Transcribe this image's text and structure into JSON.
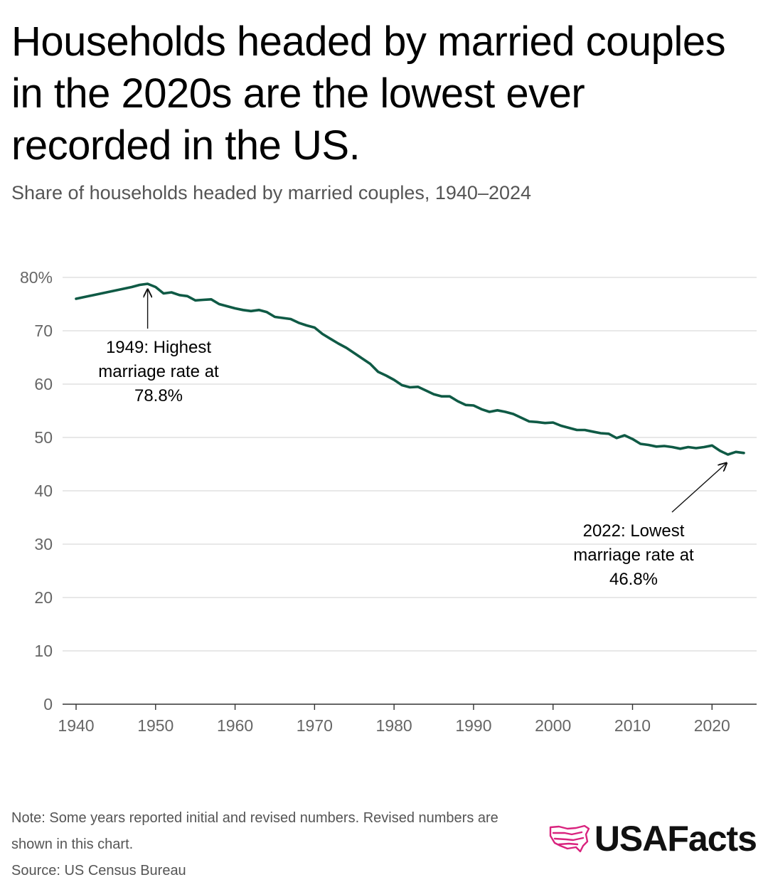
{
  "title": "Households headed by married couples in the 2020s are the lowest ever recorded in the US.",
  "subtitle": "Share of households headed by married couples, 1940–2024",
  "note_line1": "Note: Some years reported initial and revised numbers. Revised numbers are shown in this chart.",
  "source": "Source: US Census Bureau",
  "brand": "USAFacts",
  "colors": {
    "line": "#0f5a45",
    "grid": "#d9d9d9",
    "brand_pink": "#d9237e"
  },
  "chart_data": {
    "type": "line",
    "title": "Share of households headed by married couples, 1940–2024",
    "xlabel": "",
    "ylabel": "",
    "xlim": [
      1940,
      2024
    ],
    "ylim": [
      0,
      80
    ],
    "grid": true,
    "x_ticks": [
      "1940",
      "1950",
      "1960",
      "1970",
      "1980",
      "1990",
      "2000",
      "2010",
      "2020"
    ],
    "y_ticks": [
      "0",
      "10",
      "20",
      "30",
      "40",
      "50",
      "60",
      "70",
      "80%"
    ],
    "series": [
      {
        "x": [
          1940,
          1947,
          1948,
          1949,
          1950,
          1951,
          1952,
          1953,
          1954,
          1955,
          1956,
          1957,
          1958,
          1959,
          1960,
          1961,
          1962,
          1963,
          1964,
          1965,
          1966,
          1967,
          1968,
          1969,
          1970,
          1971,
          1972,
          1973,
          1974,
          1975,
          1976,
          1977,
          1978,
          1979,
          1980,
          1981,
          1982,
          1983,
          1984,
          1985,
          1986,
          1987,
          1988,
          1989,
          1990,
          1991,
          1992,
          1993,
          1994,
          1995,
          1996,
          1997,
          1998,
          1999,
          2000,
          2001,
          2002,
          2003,
          2004,
          2005,
          2006,
          2007,
          2008,
          2009,
          2010,
          2011,
          2012,
          2013,
          2014,
          2015,
          2016,
          2017,
          2018,
          2019,
          2020,
          2021,
          2022,
          2023,
          2024
        ],
        "values": [
          76.0,
          78.2,
          78.6,
          78.8,
          78.2,
          77.0,
          77.2,
          76.7,
          76.5,
          75.7,
          75.8,
          75.9,
          75.0,
          74.6,
          74.2,
          73.9,
          73.7,
          73.9,
          73.5,
          72.6,
          72.4,
          72.2,
          71.5,
          71.0,
          70.6,
          69.4,
          68.5,
          67.6,
          66.8,
          65.8,
          64.8,
          63.8,
          62.3,
          61.6,
          60.8,
          59.8,
          59.4,
          59.5,
          58.8,
          58.1,
          57.7,
          57.7,
          56.8,
          56.1,
          56.0,
          55.3,
          54.8,
          55.1,
          54.8,
          54.4,
          53.7,
          53.0,
          52.9,
          52.7,
          52.8,
          52.2,
          51.8,
          51.4,
          51.4,
          51.1,
          50.8,
          50.7,
          49.9,
          50.4,
          49.7,
          48.8,
          48.6,
          48.3,
          48.4,
          48.2,
          47.9,
          48.2,
          48.0,
          48.2,
          48.5,
          47.5,
          46.8,
          47.3,
          47.1
        ]
      }
    ],
    "annotations": [
      {
        "x": 1949,
        "y": 78.8,
        "lines": [
          "1949: Highest",
          "marriage rate at",
          "78.8%"
        ]
      },
      {
        "x": 2022,
        "y": 46.8,
        "lines": [
          "2022: Lowest",
          "marriage rate at",
          "46.8%"
        ]
      }
    ]
  }
}
